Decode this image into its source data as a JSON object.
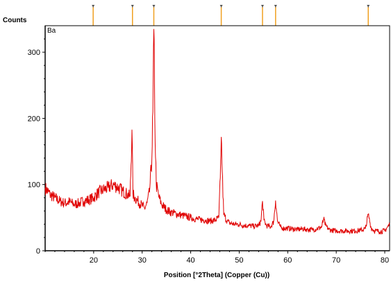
{
  "chart_data": {
    "type": "line",
    "ylabel": "Counts",
    "xlabel": "Position [°2Theta] (Copper (Cu))",
    "sample_label": "Ba",
    "xlim": [
      10,
      81
    ],
    "ylim": [
      0,
      340
    ],
    "x_ticks": [
      20,
      30,
      40,
      50,
      60,
      70,
      80
    ],
    "y_ticks": [
      0,
      100,
      200,
      300
    ],
    "grid": false,
    "series_color": "#e00000",
    "reference_marker_color": "#f0a020",
    "reference_peaks": [
      19.9,
      28.0,
      32.4,
      46.3,
      54.8,
      57.5,
      76.6
    ],
    "series": [
      {
        "x": [
          10,
          11,
          12,
          13,
          14,
          15,
          16,
          17,
          18,
          19,
          20,
          21,
          22,
          23,
          24,
          25,
          26,
          27,
          27.5,
          27.9,
          28.1,
          28.5,
          29,
          30,
          30.5,
          31,
          31.5,
          32,
          32.2,
          32.4,
          32.6,
          32.9,
          33.5,
          34,
          35,
          36,
          37,
          38,
          39,
          40,
          41,
          42,
          43,
          44,
          45,
          45.8,
          46.1,
          46.3,
          46.5,
          46.8,
          47.5,
          48,
          49,
          50,
          51,
          52,
          53,
          54,
          54.5,
          54.8,
          55.1,
          55.6,
          56.5,
          57.1,
          57.5,
          57.9,
          58.5,
          59,
          60,
          61,
          62,
          63,
          64,
          65,
          66,
          67,
          67.4,
          67.8,
          68.5,
          69,
          70,
          71,
          72,
          73,
          74,
          75,
          76,
          76.6,
          77.2,
          78,
          79,
          80,
          81
        ],
        "y": [
          95,
          85,
          80,
          75,
          72,
          74,
          70,
          72,
          75,
          77,
          80,
          88,
          92,
          95,
          100,
          96,
          90,
          85,
          82,
          183,
          86,
          80,
          76,
          68,
          64,
          72,
          88,
          140,
          210,
          335,
          200,
          100,
          80,
          70,
          62,
          58,
          56,
          54,
          52,
          50,
          48,
          47,
          46,
          45,
          46,
          50,
          110,
          172,
          120,
          55,
          45,
          42,
          40,
          40,
          38,
          38,
          37,
          38,
          45,
          75,
          46,
          38,
          36,
          44,
          76,
          44,
          36,
          34,
          34,
          33,
          32,
          33,
          32,
          32,
          33,
          36,
          48,
          38,
          32,
          31,
          30,
          30,
          30,
          30,
          30,
          31,
          33,
          55,
          34,
          30,
          29,
          30,
          40
        ]
      }
    ]
  }
}
